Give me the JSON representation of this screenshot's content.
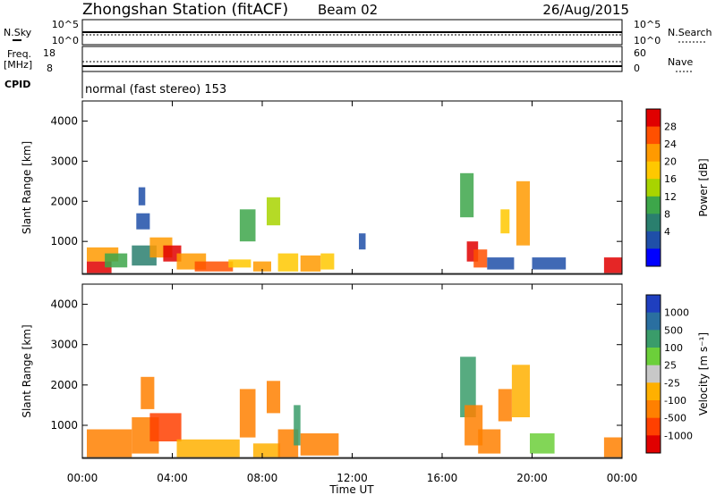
{
  "header": {
    "title": "Zhongshan Station (fitACF)",
    "beam": "Beam 02",
    "date": "26/Aug/2015"
  },
  "top_panels": {
    "nsky_label": "N.Sky",
    "nsky_ticks": [
      "10^5",
      "10^0"
    ],
    "nsearch_label": "N.Search",
    "nsearch_ticks": [
      "10^5",
      "10^0"
    ],
    "freq_label_1": "Freq.",
    "freq_label_2": "[MHz]",
    "freq_ticks": [
      "18",
      "8"
    ],
    "nave_label": "Nave",
    "nave_ticks": [
      "60",
      "0"
    ],
    "cpid_label": "CPID",
    "cpid_text": "normal (fast stereo) 153"
  },
  "chart_data": [
    {
      "type": "heatmap",
      "name": "power",
      "ylabel": "Slant Range [km]",
      "y_ticks": [
        "4000",
        "3000",
        "2000",
        "1000"
      ],
      "ylim": [
        180,
        4500
      ],
      "colorbar_label": "Power [dB]",
      "colorbar_ticks": [
        "28",
        "24",
        "20",
        "16",
        "12",
        "8",
        "4"
      ],
      "colorbar_colors": [
        "#e00000",
        "#ff5000",
        "#ff9a00",
        "#ffc800",
        "#a8d400",
        "#3da64a",
        "#2a7f6e",
        "#1f4fa8",
        "#0000ff"
      ],
      "x_ticks": [
        "00:00",
        "04:00",
        "08:00",
        "12:00",
        "16:00",
        "20:00",
        "00:00"
      ],
      "xlim_hours": [
        0,
        24
      ],
      "cells": [
        [
          0.2,
          1.3,
          200,
          500,
          "#e00000"
        ],
        [
          0.2,
          1.6,
          500,
          850,
          "#ff9a00"
        ],
        [
          1.0,
          2.0,
          350,
          700,
          "#3da64a"
        ],
        [
          2.2,
          3.3,
          400,
          900,
          "#2a7f6e"
        ],
        [
          2.4,
          3.0,
          1300,
          1700,
          "#1f4fa8"
        ],
        [
          2.5,
          2.8,
          1900,
          2350,
          "#1f4fa8"
        ],
        [
          3.0,
          4.0,
          600,
          1100,
          "#ff9a00"
        ],
        [
          3.6,
          4.4,
          500,
          900,
          "#e00000"
        ],
        [
          4.2,
          5.5,
          300,
          700,
          "#ff9a00"
        ],
        [
          5.0,
          6.7,
          250,
          500,
          "#ff5000"
        ],
        [
          6.5,
          7.5,
          350,
          550,
          "#ffc800"
        ],
        [
          7.0,
          7.7,
          1000,
          1800,
          "#3da64a"
        ],
        [
          7.6,
          8.4,
          250,
          500,
          "#ff9a00"
        ],
        [
          8.2,
          8.8,
          1400,
          2100,
          "#a8d400"
        ],
        [
          8.7,
          9.6,
          250,
          700,
          "#ffc800"
        ],
        [
          9.7,
          10.6,
          250,
          650,
          "#ff9a00"
        ],
        [
          10.6,
          11.2,
          300,
          700,
          "#ffc800"
        ],
        [
          12.3,
          12.6,
          800,
          1200,
          "#1f4fa8"
        ],
        [
          16.8,
          17.4,
          1600,
          2700,
          "#3da64a"
        ],
        [
          17.1,
          17.6,
          500,
          1000,
          "#e00000"
        ],
        [
          17.4,
          18.0,
          350,
          800,
          "#ff5000"
        ],
        [
          18.0,
          19.2,
          300,
          600,
          "#1f4fa8"
        ],
        [
          18.6,
          19.0,
          1200,
          1800,
          "#ffc800"
        ],
        [
          19.3,
          19.9,
          900,
          2500,
          "#ff9a00"
        ],
        [
          20.0,
          21.5,
          300,
          600,
          "#1f4fa8"
        ],
        [
          23.2,
          24.0,
          200,
          600,
          "#e00000"
        ]
      ]
    },
    {
      "type": "heatmap",
      "name": "velocity",
      "ylabel": "Slant Range [km]",
      "y_ticks": [
        "4000",
        "3000",
        "2000",
        "1000"
      ],
      "ylim": [
        180,
        4500
      ],
      "colorbar_label": "Velocity [m s⁻¹]",
      "colorbar_ticks": [
        "1000",
        "500",
        "100",
        "25",
        "-25",
        "-100",
        "-500",
        "-1000"
      ],
      "colorbar_colors": [
        "#1f3fbf",
        "#2a6fa0",
        "#3a9c6a",
        "#6ccf3a",
        "#c8c8c8",
        "#ffb000",
        "#ff8000",
        "#ff4000",
        "#e00000"
      ],
      "x_ticks": [
        "00:00",
        "04:00",
        "08:00",
        "12:00",
        "16:00",
        "20:00",
        "00:00"
      ],
      "xlim_hours": [
        0,
        24
      ],
      "cells": [
        [
          0.2,
          2.2,
          200,
          900,
          "#ff8000"
        ],
        [
          2.2,
          3.4,
          300,
          1200,
          "#ff8000"
        ],
        [
          2.6,
          3.2,
          1400,
          2200,
          "#ff8000"
        ],
        [
          3.0,
          4.4,
          600,
          1300,
          "#ff4000"
        ],
        [
          4.2,
          7.0,
          200,
          650,
          "#ffb000"
        ],
        [
          7.0,
          7.7,
          700,
          1900,
          "#ff8000"
        ],
        [
          7.6,
          8.8,
          200,
          550,
          "#ffb000"
        ],
        [
          8.2,
          8.8,
          1300,
          2100,
          "#ff8000"
        ],
        [
          8.7,
          9.6,
          200,
          900,
          "#ff8000"
        ],
        [
          9.4,
          9.7,
          500,
          1500,
          "#3a9c6a"
        ],
        [
          9.7,
          11.4,
          250,
          800,
          "#ff8000"
        ],
        [
          16.8,
          17.5,
          1200,
          2700,
          "#3a9c6a"
        ],
        [
          17.0,
          17.8,
          500,
          1500,
          "#ff8000"
        ],
        [
          17.6,
          18.6,
          300,
          900,
          "#ff8000"
        ],
        [
          18.5,
          19.1,
          1100,
          1900,
          "#ff8000"
        ],
        [
          19.1,
          19.9,
          1200,
          2500,
          "#ffb000"
        ],
        [
          19.9,
          21.0,
          300,
          800,
          "#6ccf3a"
        ],
        [
          23.2,
          24.0,
          200,
          700,
          "#ff8000"
        ]
      ]
    }
  ],
  "xlabel": "Time UT"
}
